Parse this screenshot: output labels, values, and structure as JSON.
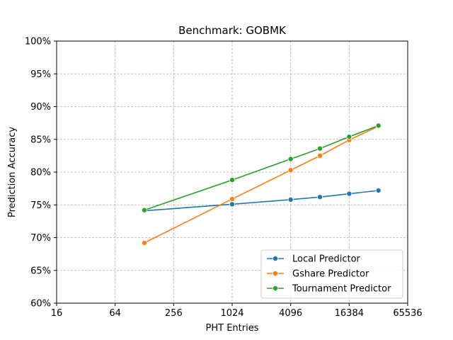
{
  "chart_data": {
    "type": "line",
    "title": "Benchmark: GOBMK",
    "xlabel": "PHT Entries",
    "ylabel": "Prediction Accuracy",
    "x_scale": "log2",
    "xlim": [
      16,
      65536
    ],
    "x_ticks": [
      16,
      64,
      256,
      1024,
      4096,
      16384,
      65536
    ],
    "x_tick_labels": [
      "16",
      "64",
      "256",
      "1024",
      "4096",
      "16384",
      "65536"
    ],
    "ylim": [
      60,
      100
    ],
    "y_ticks": [
      60,
      65,
      70,
      75,
      80,
      85,
      90,
      95,
      100
    ],
    "y_tick_labels": [
      "60%",
      "65%",
      "70%",
      "75%",
      "80%",
      "85%",
      "90%",
      "95%",
      "100%"
    ],
    "grid": true,
    "legend_position": "lower-right",
    "series": [
      {
        "name": "Local Predictor",
        "color": "#1f77b4",
        "x": [
          128,
          1024,
          4096,
          8192,
          16384,
          32768
        ],
        "y": [
          74.1,
          75.1,
          75.8,
          76.2,
          76.7,
          77.2
        ]
      },
      {
        "name": "Gshare Predictor",
        "color": "#ff7f0e",
        "x": [
          128,
          1024,
          4096,
          8192,
          16384,
          32768
        ],
        "y": [
          69.2,
          75.9,
          80.3,
          82.5,
          84.9,
          87.0
        ]
      },
      {
        "name": "Tournament Predictor",
        "color": "#2ca02c",
        "x": [
          128,
          1024,
          4096,
          8192,
          16384,
          32768
        ],
        "y": [
          74.2,
          78.8,
          82.0,
          83.6,
          85.4,
          87.1
        ]
      }
    ]
  }
}
